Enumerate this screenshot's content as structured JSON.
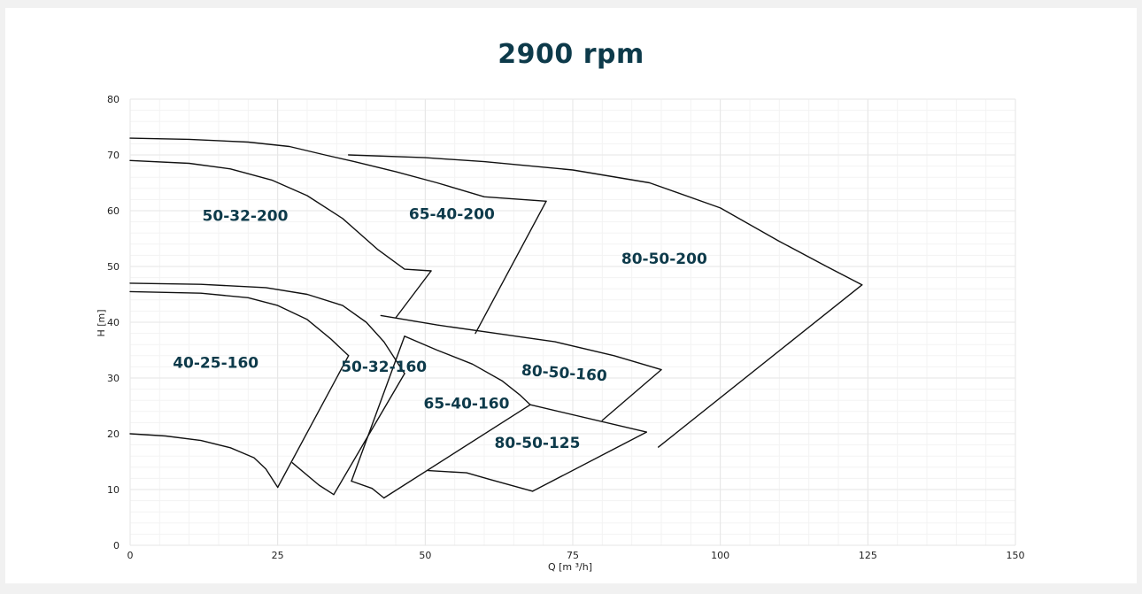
{
  "chart_data": {
    "type": "line",
    "title": "2900 rpm",
    "xlabel": "Q [m ³/h]",
    "ylabel": "H [m]",
    "xlim": [
      0,
      150
    ],
    "ylim": [
      0,
      80
    ],
    "x_ticks": [
      0,
      25,
      50,
      75,
      100,
      125,
      150
    ],
    "y_ticks": [
      0,
      10,
      20,
      30,
      40,
      50,
      60,
      70,
      80
    ],
    "grid": true,
    "colors": {
      "title": "#0d3a4a",
      "labels": "#0d3a4a",
      "lines": "#111111",
      "grid": "#e6e6e6",
      "minor_grid": "#f3f3f3"
    },
    "series": [
      {
        "points": [
          [
            0,
            73
          ],
          [
            10,
            72.8
          ],
          [
            20,
            72.3
          ],
          [
            27,
            71.5
          ],
          [
            33,
            70
          ],
          [
            38,
            68.8
          ],
          [
            45,
            67
          ],
          [
            52,
            65
          ],
          [
            60,
            62.5
          ],
          [
            70.5,
            61.7
          ]
        ]
      },
      {
        "points": [
          [
            0,
            69
          ],
          [
            10,
            68.5
          ],
          [
            17,
            67.5
          ],
          [
            24,
            65.5
          ],
          [
            30,
            62.7
          ],
          [
            36,
            58.6
          ],
          [
            42,
            53
          ],
          [
            46.5,
            49.5
          ],
          [
            51,
            49.2
          ]
        ]
      },
      {
        "points": [
          [
            37,
            70
          ],
          [
            50,
            69.5
          ],
          [
            60,
            68.8
          ],
          [
            75,
            67.3
          ],
          [
            88,
            65
          ],
          [
            100,
            60.5
          ],
          [
            110,
            54.5
          ],
          [
            118,
            50
          ],
          [
            124,
            46.7
          ]
        ]
      },
      {
        "points": [
          [
            70.5,
            61.7
          ],
          [
            58.5,
            38
          ]
        ]
      },
      {
        "points": [
          [
            51,
            49.2
          ],
          [
            45,
            40.8
          ]
        ]
      },
      {
        "points": [
          [
            124,
            46.7
          ],
          [
            89.5,
            17.6
          ]
        ]
      },
      {
        "points": [
          [
            0,
            47
          ],
          [
            12,
            46.8
          ],
          [
            23,
            46.2
          ],
          [
            30,
            45
          ],
          [
            36,
            43
          ],
          [
            40,
            40
          ],
          [
            43,
            36.5
          ],
          [
            46.5,
            30.8
          ]
        ]
      },
      {
        "points": [
          [
            0,
            45.5
          ],
          [
            12,
            45.2
          ],
          [
            20,
            44.4
          ],
          [
            25,
            43
          ],
          [
            30,
            40.5
          ],
          [
            34,
            37
          ],
          [
            37,
            34
          ]
        ]
      },
      {
        "points": [
          [
            0,
            20
          ],
          [
            6,
            19.6
          ],
          [
            12,
            18.8
          ],
          [
            17,
            17.5
          ],
          [
            21,
            15.7
          ],
          [
            23,
            13.7
          ],
          [
            25,
            10.4
          ]
        ]
      },
      {
        "points": [
          [
            37,
            34
          ],
          [
            25,
            10.4
          ]
        ]
      },
      {
        "points": [
          [
            46.5,
            30.8
          ],
          [
            34.5,
            9.1
          ]
        ]
      },
      {
        "points": [
          [
            34.5,
            9.1
          ],
          [
            32,
            10.8
          ],
          [
            27.5,
            14.8
          ]
        ]
      },
      {
        "points": [
          [
            42.5,
            41.2
          ],
          [
            52,
            39.5
          ],
          [
            62,
            38
          ],
          [
            72,
            36.5
          ],
          [
            82,
            34
          ],
          [
            90,
            31.5
          ]
        ]
      },
      {
        "points": [
          [
            90,
            31.5
          ],
          [
            80,
            22.4
          ]
        ]
      },
      {
        "points": [
          [
            46.5,
            37.5
          ],
          [
            52,
            35
          ],
          [
            58,
            32.5
          ],
          [
            63,
            29.5
          ],
          [
            66,
            27
          ],
          [
            67.8,
            25.2
          ]
        ]
      },
      {
        "points": [
          [
            46.5,
            37.5
          ],
          [
            37.5,
            11.5
          ]
        ]
      },
      {
        "points": [
          [
            37.5,
            11.5
          ],
          [
            41,
            10.2
          ],
          [
            43,
            8.5
          ]
        ]
      },
      {
        "points": [
          [
            43,
            8.5
          ],
          [
            67.8,
            25.2
          ]
        ]
      },
      {
        "points": [
          [
            67.8,
            25.2
          ],
          [
            87.5,
            20.3
          ]
        ]
      },
      {
        "points": [
          [
            87.5,
            20.3
          ],
          [
            68.2,
            9.7
          ]
        ]
      },
      {
        "points": [
          [
            50.5,
            13.4
          ],
          [
            57,
            13
          ],
          [
            61,
            11.8
          ],
          [
            68.2,
            9.7
          ]
        ]
      }
    ],
    "region_labels": [
      {
        "text": "50-32-200",
        "x": 19.5,
        "y": 58.2
      },
      {
        "text": "65-40-200",
        "x": 54.5,
        "y": 58.5
      },
      {
        "text": "80-50-200",
        "x": 90.5,
        "y": 50.5
      },
      {
        "text": "40-25-160",
        "x": 14.5,
        "y": 31.8
      },
      {
        "text": "50-32-160",
        "x": 43,
        "y": 31.1
      },
      {
        "text": "80-50-160",
        "x": 73.5,
        "y": 30,
        "rotate": 4,
        "size": 14
      },
      {
        "text": "65-40-160",
        "x": 57,
        "y": 24.5
      },
      {
        "text": "80-50-125",
        "x": 69,
        "y": 17.5
      }
    ]
  }
}
